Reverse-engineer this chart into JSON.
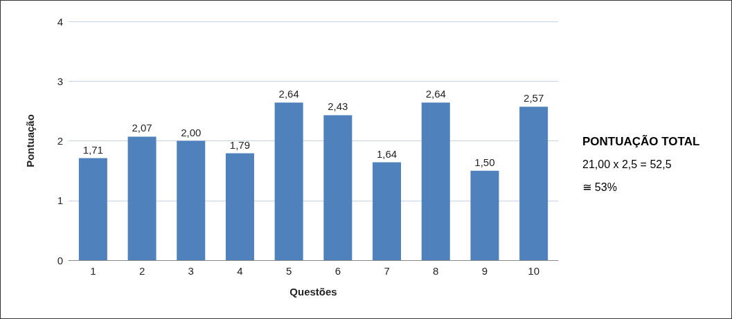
{
  "chart_data": {
    "type": "bar",
    "xlabel": "Questões",
    "ylabel": "Pontuação",
    "categories": [
      "1",
      "2",
      "3",
      "4",
      "5",
      "6",
      "7",
      "8",
      "9",
      "10"
    ],
    "values": [
      1.71,
      2.07,
      2.0,
      1.79,
      2.64,
      2.43,
      1.64,
      2.64,
      1.5,
      2.57
    ],
    "value_labels": [
      "1,71",
      "2,07",
      "2,00",
      "1,79",
      "2,64",
      "2,43",
      "1,64",
      "2,64",
      "1,50",
      "2,57"
    ],
    "color": "#4f81bd",
    "ylim": [
      0,
      4
    ],
    "yticks": [
      0,
      1,
      2,
      3,
      4
    ],
    "grid": "y",
    "annotations": [
      "PONTUAÇÃO TOTAL",
      "21,00 x 2,5 = 52,5",
      "≅ 53%"
    ]
  }
}
